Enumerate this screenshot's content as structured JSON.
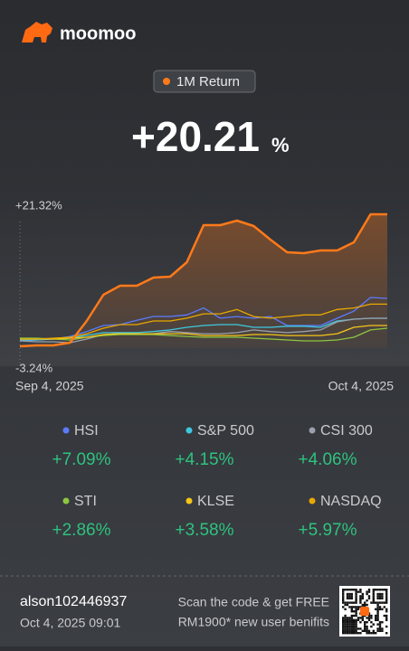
{
  "brand": "moomoo",
  "badge": "1M Return",
  "total_return": {
    "value": "+20.21",
    "unit": "%"
  },
  "chart_data": {
    "type": "line",
    "categories": [
      "Sep 4, 2025",
      null,
      null,
      null,
      null,
      null,
      null,
      null,
      null,
      null,
      null,
      null,
      null,
      null,
      null,
      null,
      null,
      null,
      null,
      null,
      null,
      null,
      "Oct 4, 2025"
    ],
    "ylim": [
      -3.24,
      21.32
    ],
    "yticks": [
      {
        "value": 21.32,
        "label": "+21.32%"
      },
      {
        "value": -3.24,
        "label": "-3.24%"
      }
    ],
    "series": [
      {
        "color": "#ff7a1a",
        "values": [
          -3.24,
          -3.07,
          -3.07,
          -2.57,
          1.47,
          6.35,
          8.03,
          8.03,
          9.54,
          9.71,
          12.4,
          19.3,
          19.3,
          20.14,
          19.13,
          16.61,
          14.25,
          14.09,
          14.59,
          14.59,
          16.1,
          21.32,
          21.32
        ]
      },
      {
        "name": "HSI",
        "return": "+7.09%",
        "color": "#5b7bff",
        "values": [
          -2.23,
          -2.06,
          -1.9,
          -1.4,
          -0.5,
          0.63,
          0.8,
          1.6,
          2.31,
          2.31,
          2.6,
          3.9,
          2.0,
          2.3,
          1.97,
          2.31,
          0.63,
          0.63,
          0.63,
          1.97,
          3.3,
          5.85,
          5.67
        ]
      },
      {
        "name": "S&P 500",
        "return": "+4.15%",
        "color": "#3fc8e0",
        "values": [
          -2.06,
          -2.06,
          -1.9,
          -1.73,
          -1.2,
          -0.7,
          -0.7,
          -0.7,
          -0.5,
          -0.2,
          0.3,
          0.63,
          0.8,
          0.8,
          0.3,
          0.3,
          0.5,
          0.5,
          0.3,
          1.47,
          1.8,
          1.97,
          1.97
        ]
      },
      {
        "name": "CSI 300",
        "return": "+4.06%",
        "color": "#9aa0ad",
        "values": [
          -2.23,
          -2.4,
          -2.4,
          -2.57,
          -1.9,
          -1.06,
          -0.9,
          -0.9,
          -0.9,
          -0.5,
          -0.7,
          -0.9,
          -0.9,
          -0.7,
          -0.2,
          -0.5,
          -0.7,
          -0.5,
          -0.2,
          1.3,
          1.8,
          1.97,
          1.97
        ]
      },
      {
        "name": "STI",
        "return": "+2.86%",
        "color": "#8dc63f",
        "values": [
          -1.73,
          -1.73,
          -1.9,
          -2.06,
          -1.56,
          -1.23,
          -1.06,
          -1.06,
          -1.06,
          -1.23,
          -1.4,
          -1.56,
          -1.56,
          -1.56,
          -1.73,
          -1.9,
          -2.06,
          -2.23,
          -2.23,
          -2.06,
          -1.56,
          -0.2,
          0.13
        ]
      },
      {
        "name": "KLSE",
        "return": "+3.58%",
        "color": "#f5c518",
        "values": [
          -1.9,
          -1.9,
          -1.9,
          -1.73,
          -1.56,
          -1.06,
          -0.9,
          -0.9,
          -0.9,
          -0.9,
          -0.9,
          -1.23,
          -1.23,
          -1.23,
          -1.06,
          -1.06,
          -1.23,
          -1.23,
          -1.23,
          -0.9,
          0.3,
          0.63,
          0.63
        ]
      },
      {
        "name": "NASDAQ",
        "return": "+5.97%",
        "color": "#e8a800",
        "values": [
          -1.9,
          -1.9,
          -1.73,
          -1.56,
          -0.9,
          0.13,
          0.8,
          0.8,
          1.47,
          1.47,
          2.0,
          2.8,
          2.8,
          3.6,
          2.3,
          2.0,
          2.3,
          2.6,
          2.6,
          3.6,
          3.9,
          4.6,
          4.6
        ]
      }
    ]
  },
  "footer": {
    "user": "alson102446937",
    "datetime": "Oct 4, 2025 09:01",
    "promo": [
      "Scan the code & get FREE",
      "RM1900* new user benifits"
    ]
  }
}
